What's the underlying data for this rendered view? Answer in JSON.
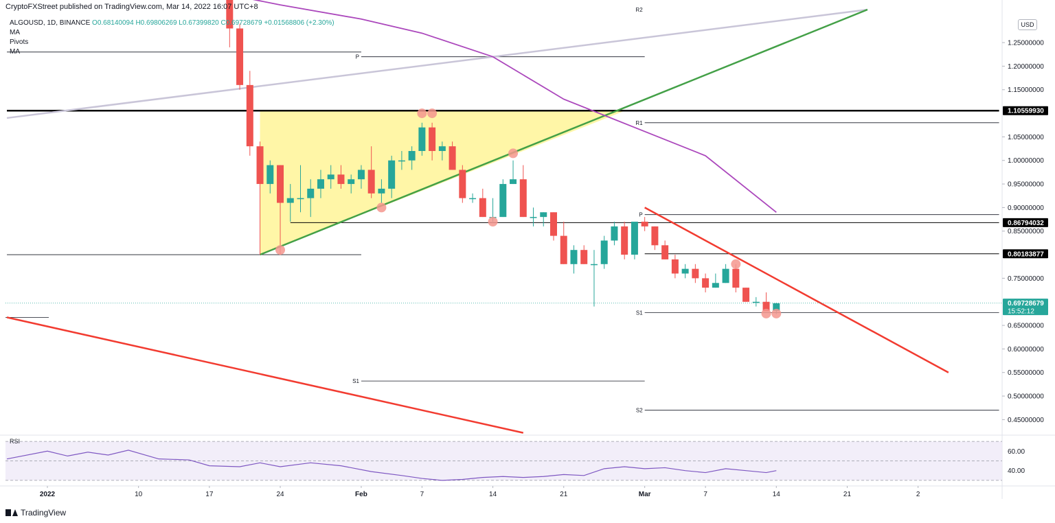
{
  "header": {
    "published": "CryptoFXStreet published on TradingView.com, Mar 14, 2022 16:07 UTC+8"
  },
  "legend": {
    "symbol": "ALGOUSD, 1D, BINANCE",
    "open": "O0.68140094",
    "high": "H0.69806269",
    "low": "L0.67399820",
    "close": "C0.69728679",
    "change": "+0.01568806 (+2.30%)",
    "indicators": [
      "MA",
      "Pivots",
      "MA"
    ]
  },
  "currency": "USD",
  "footer": {
    "brand": "TradingView"
  },
  "colors": {
    "up": "#26a69a",
    "down": "#ef5350",
    "trend_green": "#43a047",
    "trend_red": "#f23b30",
    "ma": "#ab47bc",
    "lavender": "#c9c5d8",
    "triangle_fill": "#fff59d",
    "touch": "#f4978e"
  },
  "chart_data": {
    "type": "candlestick",
    "symbol": "ALGOUSD",
    "timeframe": "1D",
    "ylim": [
      0.42,
      1.32
    ],
    "y_ticks": [
      "1.25000000",
      "1.20000000",
      "1.15000000",
      "1.05000000",
      "1.00000000",
      "0.95000000",
      "0.90000000",
      "0.85000000",
      "0.75000000",
      "0.65000000",
      "0.60000000",
      "0.55000000",
      "0.50000000",
      "0.45000000"
    ],
    "x_ticks": [
      {
        "date": "2022-01-01",
        "label": "2022"
      },
      {
        "date": "2022-01-10",
        "label": "10"
      },
      {
        "date": "2022-01-17",
        "label": "17"
      },
      {
        "date": "2022-01-24",
        "label": "24"
      },
      {
        "date": "2022-02-01",
        "label": "Feb"
      },
      {
        "date": "2022-02-07",
        "label": "7"
      },
      {
        "date": "2022-02-14",
        "label": "14"
      },
      {
        "date": "2022-02-21",
        "label": "21"
      },
      {
        "date": "2022-03-01",
        "label": "Mar"
      },
      {
        "date": "2022-03-07",
        "label": "7"
      },
      {
        "date": "2022-03-14",
        "label": "14"
      },
      {
        "date": "2022-03-21",
        "label": "21"
      },
      {
        "date": "2022-03-28",
        "label": "2"
      }
    ],
    "price_labels": [
      {
        "value": 1.1055993,
        "text": "1.10559930"
      },
      {
        "value": 0.86794032,
        "text": "0.86794032"
      },
      {
        "value": 0.80183877,
        "text": "0.80183877"
      },
      {
        "value": 0.69728679,
        "text": "0.69728679",
        "countdown": "15:52:12"
      }
    ],
    "candles": [
      {
        "date": "2022-01-19",
        "o": 1.36,
        "h": 1.37,
        "l": 1.24,
        "c": 1.28
      },
      {
        "date": "2022-01-20",
        "o": 1.28,
        "h": 1.29,
        "l": 1.15,
        "c": 1.16
      },
      {
        "date": "2022-01-21",
        "o": 1.16,
        "h": 1.19,
        "l": 1.01,
        "c": 1.03
      },
      {
        "date": "2022-01-22",
        "o": 1.03,
        "h": 1.04,
        "l": 0.8,
        "c": 0.95
      },
      {
        "date": "2022-01-23",
        "o": 0.95,
        "h": 1.0,
        "l": 0.93,
        "c": 0.99
      },
      {
        "date": "2022-01-24",
        "o": 0.99,
        "h": 0.99,
        "l": 0.8,
        "c": 0.91
      },
      {
        "date": "2022-01-25",
        "o": 0.91,
        "h": 0.95,
        "l": 0.87,
        "c": 0.92
      },
      {
        "date": "2022-01-26",
        "o": 0.92,
        "h": 0.99,
        "l": 0.89,
        "c": 0.92
      },
      {
        "date": "2022-01-27",
        "o": 0.92,
        "h": 0.96,
        "l": 0.88,
        "c": 0.94
      },
      {
        "date": "2022-01-28",
        "o": 0.94,
        "h": 0.98,
        "l": 0.92,
        "c": 0.96
      },
      {
        "date": "2022-01-29",
        "o": 0.96,
        "h": 0.99,
        "l": 0.94,
        "c": 0.97
      },
      {
        "date": "2022-01-30",
        "o": 0.97,
        "h": 0.99,
        "l": 0.94,
        "c": 0.95
      },
      {
        "date": "2022-01-31",
        "o": 0.95,
        "h": 0.97,
        "l": 0.93,
        "c": 0.96
      },
      {
        "date": "2022-02-01",
        "o": 0.96,
        "h": 0.99,
        "l": 0.94,
        "c": 0.98
      },
      {
        "date": "2022-02-02",
        "o": 0.98,
        "h": 1.03,
        "l": 0.92,
        "c": 0.93
      },
      {
        "date": "2022-02-03",
        "o": 0.93,
        "h": 0.96,
        "l": 0.91,
        "c": 0.94
      },
      {
        "date": "2022-02-04",
        "o": 0.94,
        "h": 1.01,
        "l": 0.92,
        "c": 1.0
      },
      {
        "date": "2022-02-05",
        "o": 1.0,
        "h": 1.02,
        "l": 0.98,
        "c": 1.0
      },
      {
        "date": "2022-02-06",
        "o": 1.0,
        "h": 1.03,
        "l": 0.98,
        "c": 1.02
      },
      {
        "date": "2022-02-07",
        "o": 1.02,
        "h": 1.08,
        "l": 1.01,
        "c": 1.07
      },
      {
        "date": "2022-02-08",
        "o": 1.07,
        "h": 1.08,
        "l": 1.0,
        "c": 1.02
      },
      {
        "date": "2022-02-09",
        "o": 1.02,
        "h": 1.04,
        "l": 1.0,
        "c": 1.03
      },
      {
        "date": "2022-02-10",
        "o": 1.03,
        "h": 1.04,
        "l": 0.98,
        "c": 0.98
      },
      {
        "date": "2022-02-11",
        "o": 0.98,
        "h": 0.99,
        "l": 0.91,
        "c": 0.92
      },
      {
        "date": "2022-02-12",
        "o": 0.92,
        "h": 0.93,
        "l": 0.91,
        "c": 0.92
      },
      {
        "date": "2022-02-13",
        "o": 0.92,
        "h": 0.94,
        "l": 0.88,
        "c": 0.88
      },
      {
        "date": "2022-02-14",
        "o": 0.88,
        "h": 0.92,
        "l": 0.87,
        "c": 0.88
      },
      {
        "date": "2022-02-15",
        "o": 0.88,
        "h": 0.96,
        "l": 0.88,
        "c": 0.95
      },
      {
        "date": "2022-02-16",
        "o": 0.95,
        "h": 1.0,
        "l": 0.95,
        "c": 0.96
      },
      {
        "date": "2022-02-17",
        "o": 0.96,
        "h": 0.99,
        "l": 0.88,
        "c": 0.88
      },
      {
        "date": "2022-02-18",
        "o": 0.88,
        "h": 0.9,
        "l": 0.86,
        "c": 0.88
      },
      {
        "date": "2022-02-19",
        "o": 0.88,
        "h": 0.89,
        "l": 0.86,
        "c": 0.89
      },
      {
        "date": "2022-02-20",
        "o": 0.89,
        "h": 0.89,
        "l": 0.83,
        "c": 0.84
      },
      {
        "date": "2022-02-21",
        "o": 0.84,
        "h": 0.87,
        "l": 0.78,
        "c": 0.78
      },
      {
        "date": "2022-02-22",
        "o": 0.78,
        "h": 0.82,
        "l": 0.76,
        "c": 0.81
      },
      {
        "date": "2022-02-23",
        "o": 0.81,
        "h": 0.82,
        "l": 0.78,
        "c": 0.78
      },
      {
        "date": "2022-02-24",
        "o": 0.78,
        "h": 0.81,
        "l": 0.69,
        "c": 0.78
      },
      {
        "date": "2022-02-25",
        "o": 0.78,
        "h": 0.84,
        "l": 0.77,
        "c": 0.83
      },
      {
        "date": "2022-02-26",
        "o": 0.83,
        "h": 0.87,
        "l": 0.82,
        "c": 0.86
      },
      {
        "date": "2022-02-27",
        "o": 0.86,
        "h": 0.87,
        "l": 0.79,
        "c": 0.8
      },
      {
        "date": "2022-02-28",
        "o": 0.8,
        "h": 0.87,
        "l": 0.79,
        "c": 0.87
      },
      {
        "date": "2022-03-01",
        "o": 0.87,
        "h": 0.88,
        "l": 0.85,
        "c": 0.86
      },
      {
        "date": "2022-03-02",
        "o": 0.86,
        "h": 0.86,
        "l": 0.81,
        "c": 0.82
      },
      {
        "date": "2022-03-03",
        "o": 0.82,
        "h": 0.83,
        "l": 0.79,
        "c": 0.79
      },
      {
        "date": "2022-03-04",
        "o": 0.79,
        "h": 0.8,
        "l": 0.75,
        "c": 0.76
      },
      {
        "date": "2022-03-05",
        "o": 0.76,
        "h": 0.78,
        "l": 0.75,
        "c": 0.77
      },
      {
        "date": "2022-03-06",
        "o": 0.77,
        "h": 0.78,
        "l": 0.74,
        "c": 0.75
      },
      {
        "date": "2022-03-07",
        "o": 0.75,
        "h": 0.76,
        "l": 0.72,
        "c": 0.73
      },
      {
        "date": "2022-03-08",
        "o": 0.73,
        "h": 0.76,
        "l": 0.73,
        "c": 0.74
      },
      {
        "date": "2022-03-09",
        "o": 0.74,
        "h": 0.78,
        "l": 0.74,
        "c": 0.77
      },
      {
        "date": "2022-03-10",
        "o": 0.77,
        "h": 0.78,
        "l": 0.72,
        "c": 0.73
      },
      {
        "date": "2022-03-11",
        "o": 0.73,
        "h": 0.73,
        "l": 0.7,
        "c": 0.7
      },
      {
        "date": "2022-03-12",
        "o": 0.7,
        "h": 0.71,
        "l": 0.69,
        "c": 0.7
      },
      {
        "date": "2022-03-13",
        "o": 0.7,
        "h": 0.72,
        "l": 0.68,
        "c": 0.68
      },
      {
        "date": "2022-03-14",
        "o": 0.681,
        "h": 0.698,
        "l": 0.674,
        "c": 0.697
      }
    ],
    "moving_average": [
      {
        "date": "2022-01-04",
        "v": 1.42
      },
      {
        "date": "2022-01-10",
        "v": 1.4
      },
      {
        "date": "2022-01-17",
        "v": 1.36
      },
      {
        "date": "2022-01-24",
        "v": 1.33
      },
      {
        "date": "2022-02-01",
        "v": 1.3
      },
      {
        "date": "2022-02-07",
        "v": 1.27
      },
      {
        "date": "2022-02-14",
        "v": 1.22
      },
      {
        "date": "2022-02-21",
        "v": 1.13
      },
      {
        "date": "2022-02-28",
        "v": 1.07
      },
      {
        "date": "2022-03-07",
        "v": 1.01
      },
      {
        "date": "2022-03-14",
        "v": 0.89
      }
    ],
    "horizontal_levels": [
      {
        "value": 1.1055993,
        "from": "2021-12-28",
        "to": "2022-04-05",
        "color": "#000000",
        "width": 2.5
      },
      {
        "value": 0.86794032,
        "from": "2022-01-25",
        "to": "2022-04-05",
        "color": "#000000",
        "width": 1
      },
      {
        "value": 0.80183877,
        "from": "2022-03-01",
        "to": "2022-04-05",
        "color": "#000000",
        "width": 1
      }
    ],
    "pivot_levels": [
      {
        "label": "S1",
        "value": 1.23,
        "from": "2021-12-28",
        "to": "2022-02-01"
      },
      {
        "label": "S2",
        "value": 0.8,
        "from": "2021-12-28",
        "to": "2022-02-01"
      },
      {
        "label": "P",
        "value": 1.22,
        "from": "2022-02-01",
        "to": "2022-03-01"
      },
      {
        "label": "S1",
        "value": 0.532,
        "from": "2022-02-01",
        "to": "2022-03-01"
      },
      {
        "label": "R2",
        "value": 1.32,
        "from": "2022-03-01",
        "to": "2022-03-01"
      },
      {
        "label": "R1",
        "value": 1.08,
        "from": "2022-03-01",
        "to": "2022-04-05"
      },
      {
        "label": "P",
        "value": 0.885,
        "from": "2022-03-01",
        "to": "2022-04-05"
      },
      {
        "label": "S1",
        "value": 0.677,
        "from": "2022-03-01",
        "to": "2022-04-05"
      },
      {
        "label": "S2",
        "value": 0.47,
        "from": "2022-03-01",
        "to": "2022-04-05"
      }
    ],
    "trendlines": [
      {
        "color": "#c9c5d8",
        "from": {
          "date": "2021-12-28",
          "v": 1.09
        },
        "to": {
          "date": "2022-03-23",
          "v": 1.32
        }
      },
      {
        "color": "#43a047",
        "from": {
          "date": "2022-01-22",
          "v": 0.8
        },
        "to": {
          "date": "2022-03-23",
          "v": 1.32
        }
      },
      {
        "color": "#f23b30",
        "from": {
          "date": "2021-12-28",
          "v": 0.667
        },
        "to": {
          "date": "2022-02-17",
          "v": 0.422
        }
      },
      {
        "color": "#f23b30",
        "from": {
          "date": "2022-03-01",
          "v": 0.9
        },
        "to": {
          "date": "2022-03-31",
          "v": 0.55
        }
      }
    ],
    "triangle": [
      {
        "date": "2022-01-22",
        "v": 1.105
      },
      {
        "date": "2022-02-27",
        "v": 1.105
      },
      {
        "date": "2022-01-22",
        "v": 0.8
      }
    ],
    "touch_points": [
      {
        "date": "2022-01-24",
        "v": 0.81
      },
      {
        "date": "2022-02-03",
        "v": 0.9
      },
      {
        "date": "2022-02-07",
        "v": 1.1
      },
      {
        "date": "2022-02-08",
        "v": 1.1
      },
      {
        "date": "2022-02-14",
        "v": 0.87
      },
      {
        "date": "2022-02-16",
        "v": 1.015
      },
      {
        "date": "2022-03-10",
        "v": 0.78
      },
      {
        "date": "2022-03-13",
        "v": 0.675
      },
      {
        "date": "2022-03-14",
        "v": 0.675
      }
    ],
    "rsi": {
      "label": "RSI",
      "ticks": [
        "60.00",
        "40.00"
      ],
      "ylim": [
        25,
        75
      ],
      "bands": [
        70,
        50,
        30
      ],
      "values": [
        {
          "date": "2021-12-28",
          "v": 52
        },
        {
          "date": "2022-01-01",
          "v": 60
        },
        {
          "date": "2022-01-03",
          "v": 55
        },
        {
          "date": "2022-01-05",
          "v": 59
        },
        {
          "date": "2022-01-07",
          "v": 56
        },
        {
          "date": "2022-01-09",
          "v": 61
        },
        {
          "date": "2022-01-12",
          "v": 52
        },
        {
          "date": "2022-01-15",
          "v": 51
        },
        {
          "date": "2022-01-17",
          "v": 45
        },
        {
          "date": "2022-01-20",
          "v": 44
        },
        {
          "date": "2022-01-22",
          "v": 48
        },
        {
          "date": "2022-01-24",
          "v": 44
        },
        {
          "date": "2022-01-27",
          "v": 48
        },
        {
          "date": "2022-01-30",
          "v": 45
        },
        {
          "date": "2022-02-02",
          "v": 39
        },
        {
          "date": "2022-02-05",
          "v": 35
        },
        {
          "date": "2022-02-07",
          "v": 32
        },
        {
          "date": "2022-02-09",
          "v": 30
        },
        {
          "date": "2022-02-11",
          "v": 31
        },
        {
          "date": "2022-02-13",
          "v": 33
        },
        {
          "date": "2022-02-15",
          "v": 34
        },
        {
          "date": "2022-02-17",
          "v": 33
        },
        {
          "date": "2022-02-19",
          "v": 34
        },
        {
          "date": "2022-02-21",
          "v": 36
        },
        {
          "date": "2022-02-23",
          "v": 35
        },
        {
          "date": "2022-02-25",
          "v": 42
        },
        {
          "date": "2022-02-27",
          "v": 44
        },
        {
          "date": "2022-03-01",
          "v": 42
        },
        {
          "date": "2022-03-03",
          "v": 43
        },
        {
          "date": "2022-03-05",
          "v": 40
        },
        {
          "date": "2022-03-07",
          "v": 38
        },
        {
          "date": "2022-03-09",
          "v": 42
        },
        {
          "date": "2022-03-11",
          "v": 40
        },
        {
          "date": "2022-03-13",
          "v": 38
        },
        {
          "date": "2022-03-14",
          "v": 40
        }
      ]
    }
  }
}
